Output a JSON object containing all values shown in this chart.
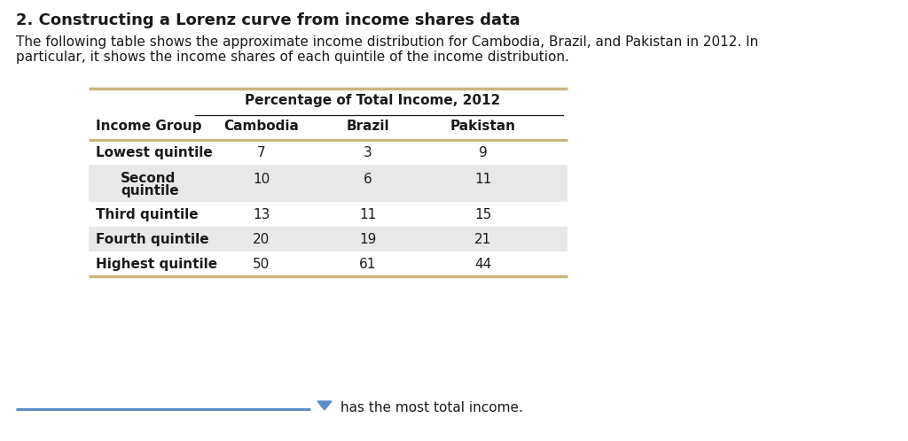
{
  "title": "2. Constructing a Lorenz curve from income shares data",
  "intro_line1": "The following table shows the approximate income distribution for Cambodia, Brazil, and Pakistan in 2012. In",
  "intro_line2": "particular, it shows the income shares of each quintile of the income distribution.",
  "table_header_main": "Percentage of Total Income, 2012",
  "col_headers": [
    "Income Group",
    "Cambodia",
    "Brazil",
    "Pakistan"
  ],
  "rows": [
    [
      "Lowest quintile",
      "7",
      "3",
      "9"
    ],
    [
      "Second\nquintile",
      "10",
      "6",
      "11"
    ],
    [
      "Third quintile",
      "13",
      "11",
      "15"
    ],
    [
      "Fourth quintile",
      "20",
      "19",
      "21"
    ],
    [
      "Highest quintile",
      "50",
      "61",
      "44"
    ]
  ],
  "footer_text": "has the most total income.",
  "footer_dropdown_color": "#5b8dc8",
  "table_border_color": "#c8b87a",
  "shaded_row_color": "#e8e8e8",
  "white_row_color": "#ffffff",
  "background_color": "#ffffff",
  "text_color": "#1a1a1a",
  "footer_line_color": "#5b8dc8"
}
